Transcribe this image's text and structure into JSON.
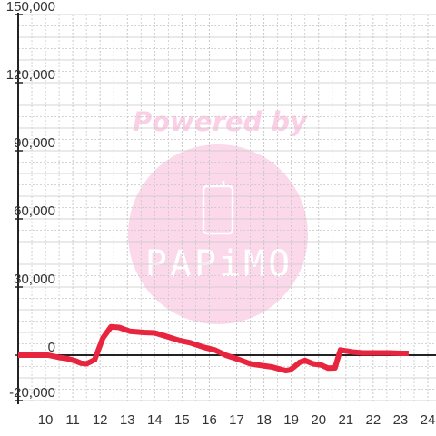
{
  "chart_data": {
    "type": "line",
    "title": "",
    "xlabel": "",
    "ylabel": "",
    "xlim": [
      9.0,
      24.3
    ],
    "ylim": [
      -20000,
      150000
    ],
    "x_ticks": [
      10,
      11,
      12,
      13,
      14,
      15,
      16,
      17,
      18,
      19,
      20,
      21,
      22,
      23,
      24
    ],
    "y_ticks": [
      -20000,
      0,
      30000,
      60000,
      90000,
      120000,
      150000
    ],
    "y_tick_labels": [
      "-20,000",
      "0",
      "30,000",
      "60,000",
      "90,000",
      "120,000",
      "150,000"
    ],
    "grid": true,
    "series": [
      {
        "color": "#e8253e",
        "x": [
          9.0,
          10.1,
          10.5,
          10.8,
          11.1,
          11.3,
          11.5,
          11.8,
          12.1,
          12.4,
          12.7,
          13.1,
          13.6,
          14.0,
          14.5,
          14.9,
          15.3,
          15.8,
          16.2,
          16.6,
          17.1,
          17.5,
          17.9,
          18.3,
          18.6,
          18.8,
          18.95,
          19.1,
          19.3,
          19.5,
          19.8,
          20.1,
          20.35,
          20.6,
          20.7,
          20.8,
          21.2,
          21.6,
          22.1,
          22.6,
          23.0,
          23.3
        ],
        "y": [
          0,
          0,
          -1000,
          -1500,
          -2500,
          -3500,
          -3800,
          -2000,
          7500,
          12500,
          12200,
          10500,
          10000,
          9800,
          8000,
          6500,
          5500,
          3500,
          2300,
          0,
          -2000,
          -3800,
          -4500,
          -5200,
          -6200,
          -6800,
          -6500,
          -5200,
          -3200,
          -2300,
          -3800,
          -4300,
          -5700,
          -5600,
          -1500,
          2300,
          1500,
          1000,
          1000,
          1000,
          800,
          800
        ]
      }
    ]
  },
  "watermark": {
    "line1": "Powered by",
    "brand": "PAPiMO",
    "text_color": "#fbd0e6",
    "circle_color": "#fbd8ea",
    "brand_color": "#ffffff"
  },
  "colors": {
    "grid": "#c8c8c8",
    "axis": "#222222",
    "zero_line": "#222222"
  }
}
